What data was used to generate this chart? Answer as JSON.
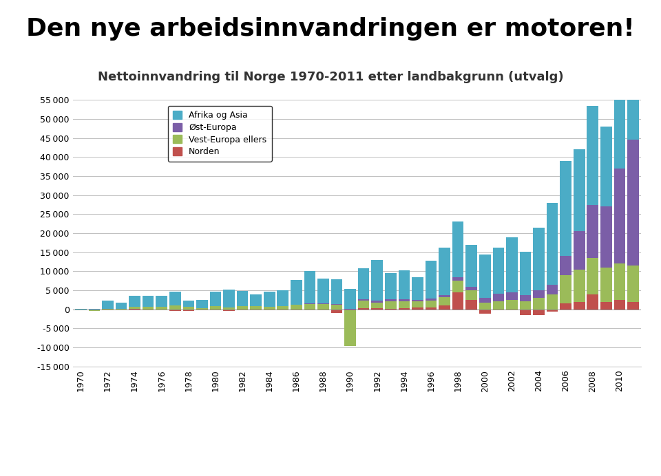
{
  "title1": "Den nye arbeidsinnvandringen er motoren!",
  "title2": "Nettoinnvandring til Norge 1970-2011 etter landbakgrunn (utvalg)",
  "years": [
    1970,
    1971,
    1972,
    1973,
    1974,
    1975,
    1976,
    1977,
    1978,
    1979,
    1980,
    1981,
    1982,
    1983,
    1984,
    1985,
    1986,
    1987,
    1988,
    1989,
    1990,
    1991,
    1992,
    1993,
    1994,
    1995,
    1996,
    1997,
    1998,
    1999,
    2000,
    2001,
    2002,
    2003,
    2004,
    2005,
    2006,
    2007,
    2008,
    2009,
    2010,
    2011
  ],
  "norden": [
    0,
    -200,
    -200,
    0,
    200,
    -200,
    0,
    -400,
    -400,
    -200,
    -300,
    -400,
    -200,
    -200,
    -200,
    -200,
    -200,
    -200,
    -200,
    -1000,
    -200,
    400,
    300,
    200,
    400,
    500,
    500,
    1000,
    4500,
    2500,
    -1200,
    -200,
    -200,
    -1500,
    -1500,
    -500,
    1500,
    2000,
    4000,
    2000,
    2500,
    2000
  ],
  "vest_europa": [
    -200,
    -200,
    100,
    200,
    500,
    700,
    700,
    1100,
    600,
    300,
    800,
    500,
    800,
    900,
    600,
    800,
    1300,
    1400,
    1400,
    1200,
    -9500,
    2000,
    1500,
    2000,
    1800,
    1700,
    1800,
    2200,
    3000,
    2500,
    1800,
    2200,
    2500,
    2200,
    3000,
    4000,
    7500,
    8500,
    9500,
    9000,
    9500,
    9500
  ],
  "ost_europa": [
    0,
    0,
    0,
    0,
    0,
    0,
    0,
    0,
    0,
    0,
    0,
    0,
    0,
    0,
    0,
    0,
    0,
    200,
    200,
    200,
    200,
    200,
    600,
    500,
    500,
    300,
    500,
    600,
    1000,
    1000,
    1200,
    2000,
    2000,
    1500,
    2000,
    2500,
    5000,
    10000,
    14000,
    16000,
    25000,
    33000
  ],
  "afrika_asia": [
    200,
    200,
    2200,
    1500,
    2800,
    2900,
    2900,
    3500,
    1800,
    2200,
    3800,
    4700,
    4000,
    3000,
    4000,
    4300,
    6500,
    8500,
    6500,
    6600,
    5200,
    8200,
    10500,
    6800,
    7500,
    6000,
    10000,
    12500,
    14500,
    11000,
    11500,
    12000,
    14500,
    11500,
    16500,
    21500,
    25000,
    21500,
    26000,
    21000,
    22000,
    20000
  ],
  "colors": {
    "norden": "#C0504D",
    "vest_europa": "#9BBB59",
    "ost_europa": "#7B5EA7",
    "afrika_asia": "#4BACC6"
  },
  "legend_labels": [
    "Afrika og Asia",
    "Øst-Europa",
    "Vest-Europa ellers",
    "Norden"
  ],
  "legend_colors": [
    "#4BACC6",
    "#7B5EA7",
    "#9BBB59",
    "#C0504D"
  ],
  "ylim": [
    -15000,
    55000
  ],
  "yticks": [
    -15000,
    -10000,
    -5000,
    0,
    5000,
    10000,
    15000,
    20000,
    25000,
    30000,
    35000,
    40000,
    45000,
    50000,
    55000
  ],
  "background_color": "#FFFFFF",
  "plot_background": "#FFFFFF",
  "footer_color": "#2E7D32",
  "title1_fontsize": 26,
  "title2_fontsize": 13
}
